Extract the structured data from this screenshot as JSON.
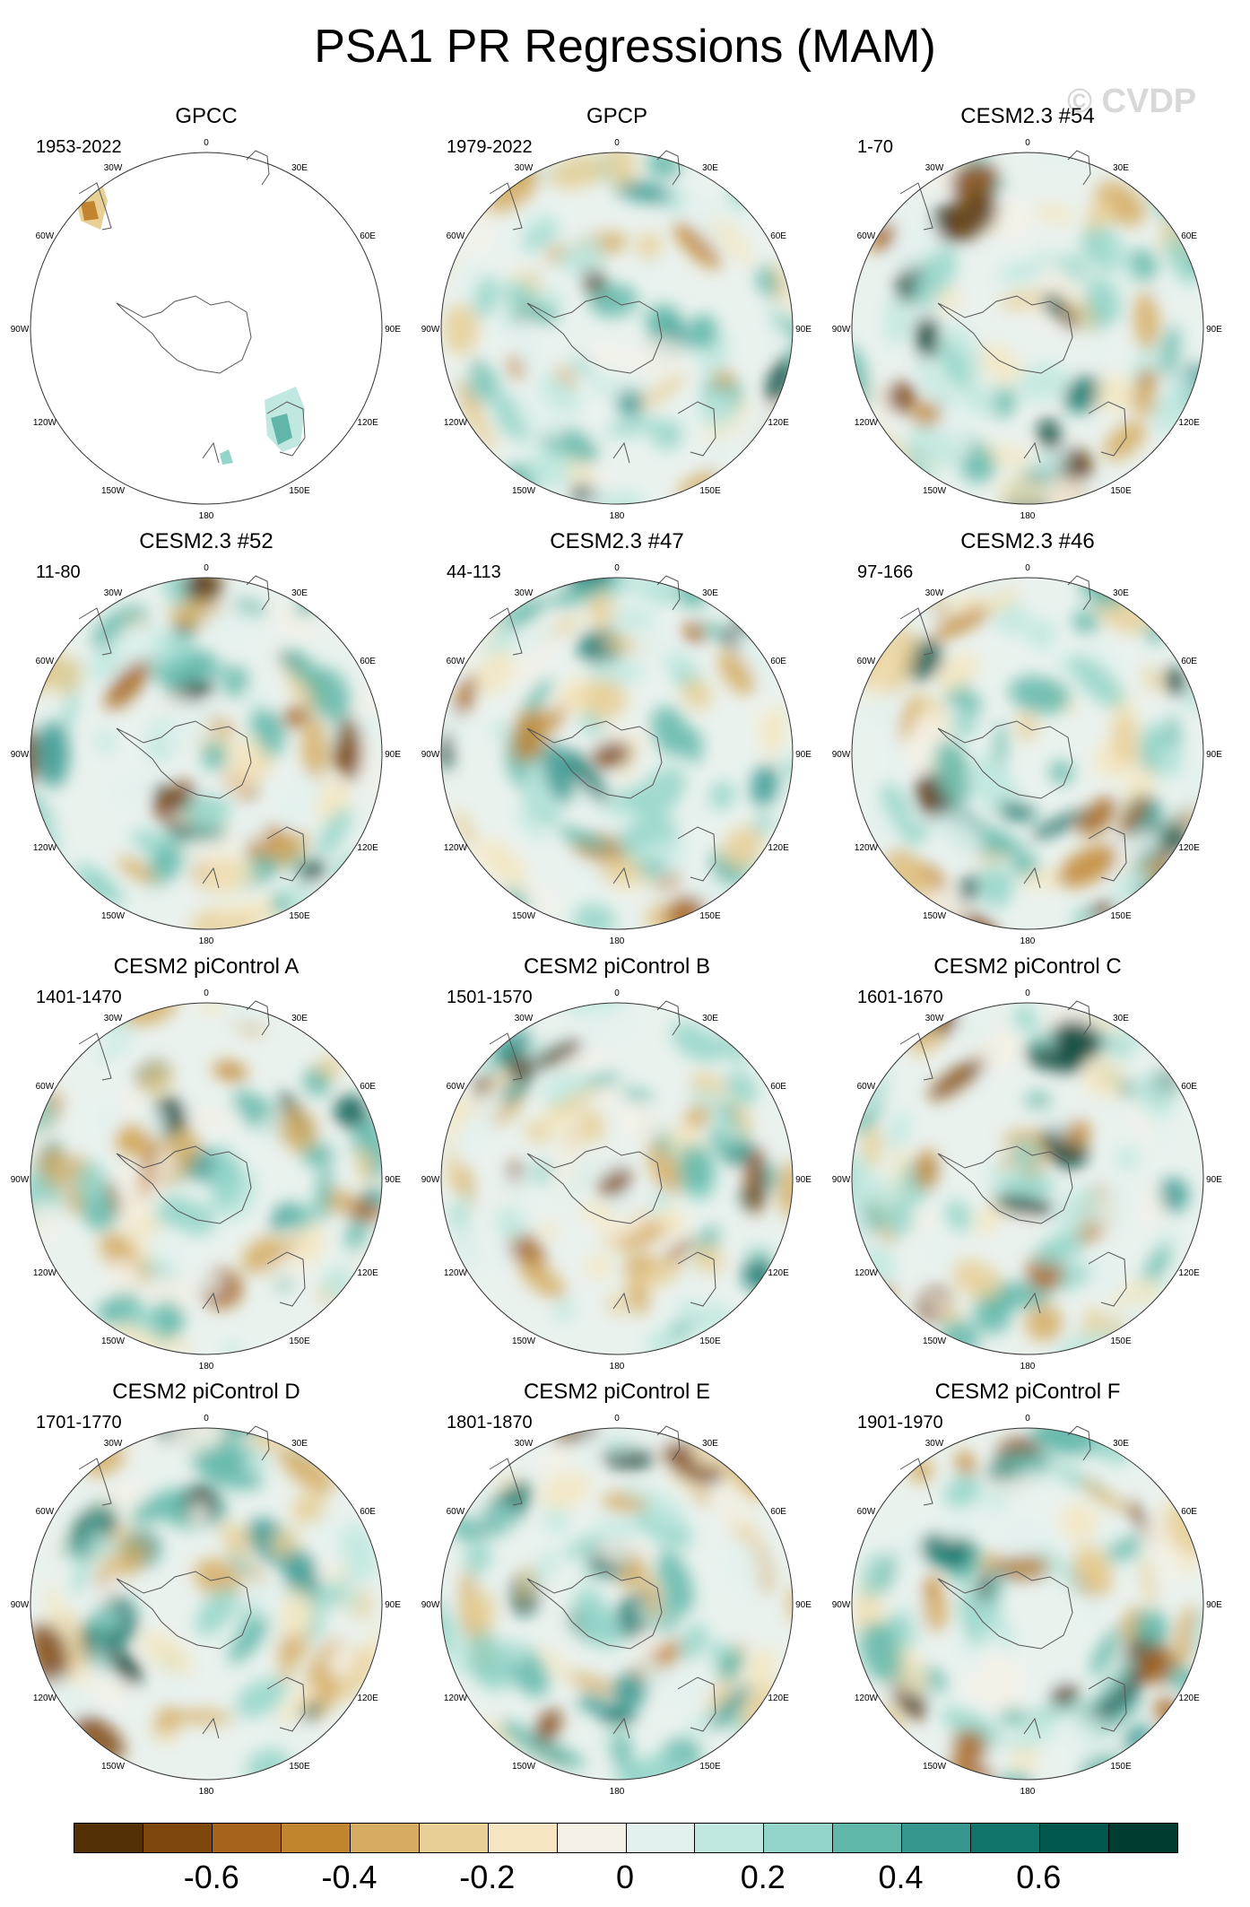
{
  "title": "PSA1 PR Regressions (MAM)",
  "watermark": "© CVDP",
  "lon_labels": [
    "0",
    "30E",
    "60E",
    "90E",
    "120E",
    "150E",
    "180",
    "150W",
    "120W",
    "90W",
    "60W",
    "30W"
  ],
  "panels": [
    {
      "name": "GPCC",
      "period": "1953-2022",
      "style": "obs-mask",
      "seed": 1
    },
    {
      "name": "GPCP",
      "period": "1979-2022",
      "style": "field",
      "seed": 2
    },
    {
      "name": "CESM2.3 #54",
      "period": "1-70",
      "style": "field",
      "seed": 3
    },
    {
      "name": "CESM2.3 #52",
      "period": "11-80",
      "style": "field",
      "seed": 4
    },
    {
      "name": "CESM2.3 #47",
      "period": "44-113",
      "style": "field",
      "seed": 5
    },
    {
      "name": "CESM2.3 #46",
      "period": "97-166",
      "style": "field",
      "seed": 6
    },
    {
      "name": "CESM2 piControl A",
      "period": "1401-1470",
      "style": "field",
      "seed": 7
    },
    {
      "name": "CESM2 piControl B",
      "period": "1501-1570",
      "style": "field",
      "seed": 8
    },
    {
      "name": "CESM2 piControl C",
      "period": "1601-1670",
      "style": "field",
      "seed": 9
    },
    {
      "name": "CESM2 piControl D",
      "period": "1701-1770",
      "style": "field",
      "seed": 10
    },
    {
      "name": "CESM2 piControl E",
      "period": "1801-1870",
      "style": "field",
      "seed": 11
    },
    {
      "name": "CESM2 piControl F",
      "period": "1901-1970",
      "style": "field",
      "seed": 12
    }
  ],
  "colorbar": {
    "colors": [
      "#543005",
      "#7e470b",
      "#a5631b",
      "#c2852f",
      "#d5ac62",
      "#e8cf96",
      "#f5e6c1",
      "#f5f1e6",
      "#e3f1ee",
      "#c0e8e0",
      "#94d5c9",
      "#60b7a9",
      "#35978f",
      "#12756b",
      "#01574c",
      "#003c30"
    ],
    "labels": [
      "-0.6",
      "-0.4",
      "-0.2",
      "0",
      "0.2",
      "0.4",
      "0.6"
    ]
  }
}
